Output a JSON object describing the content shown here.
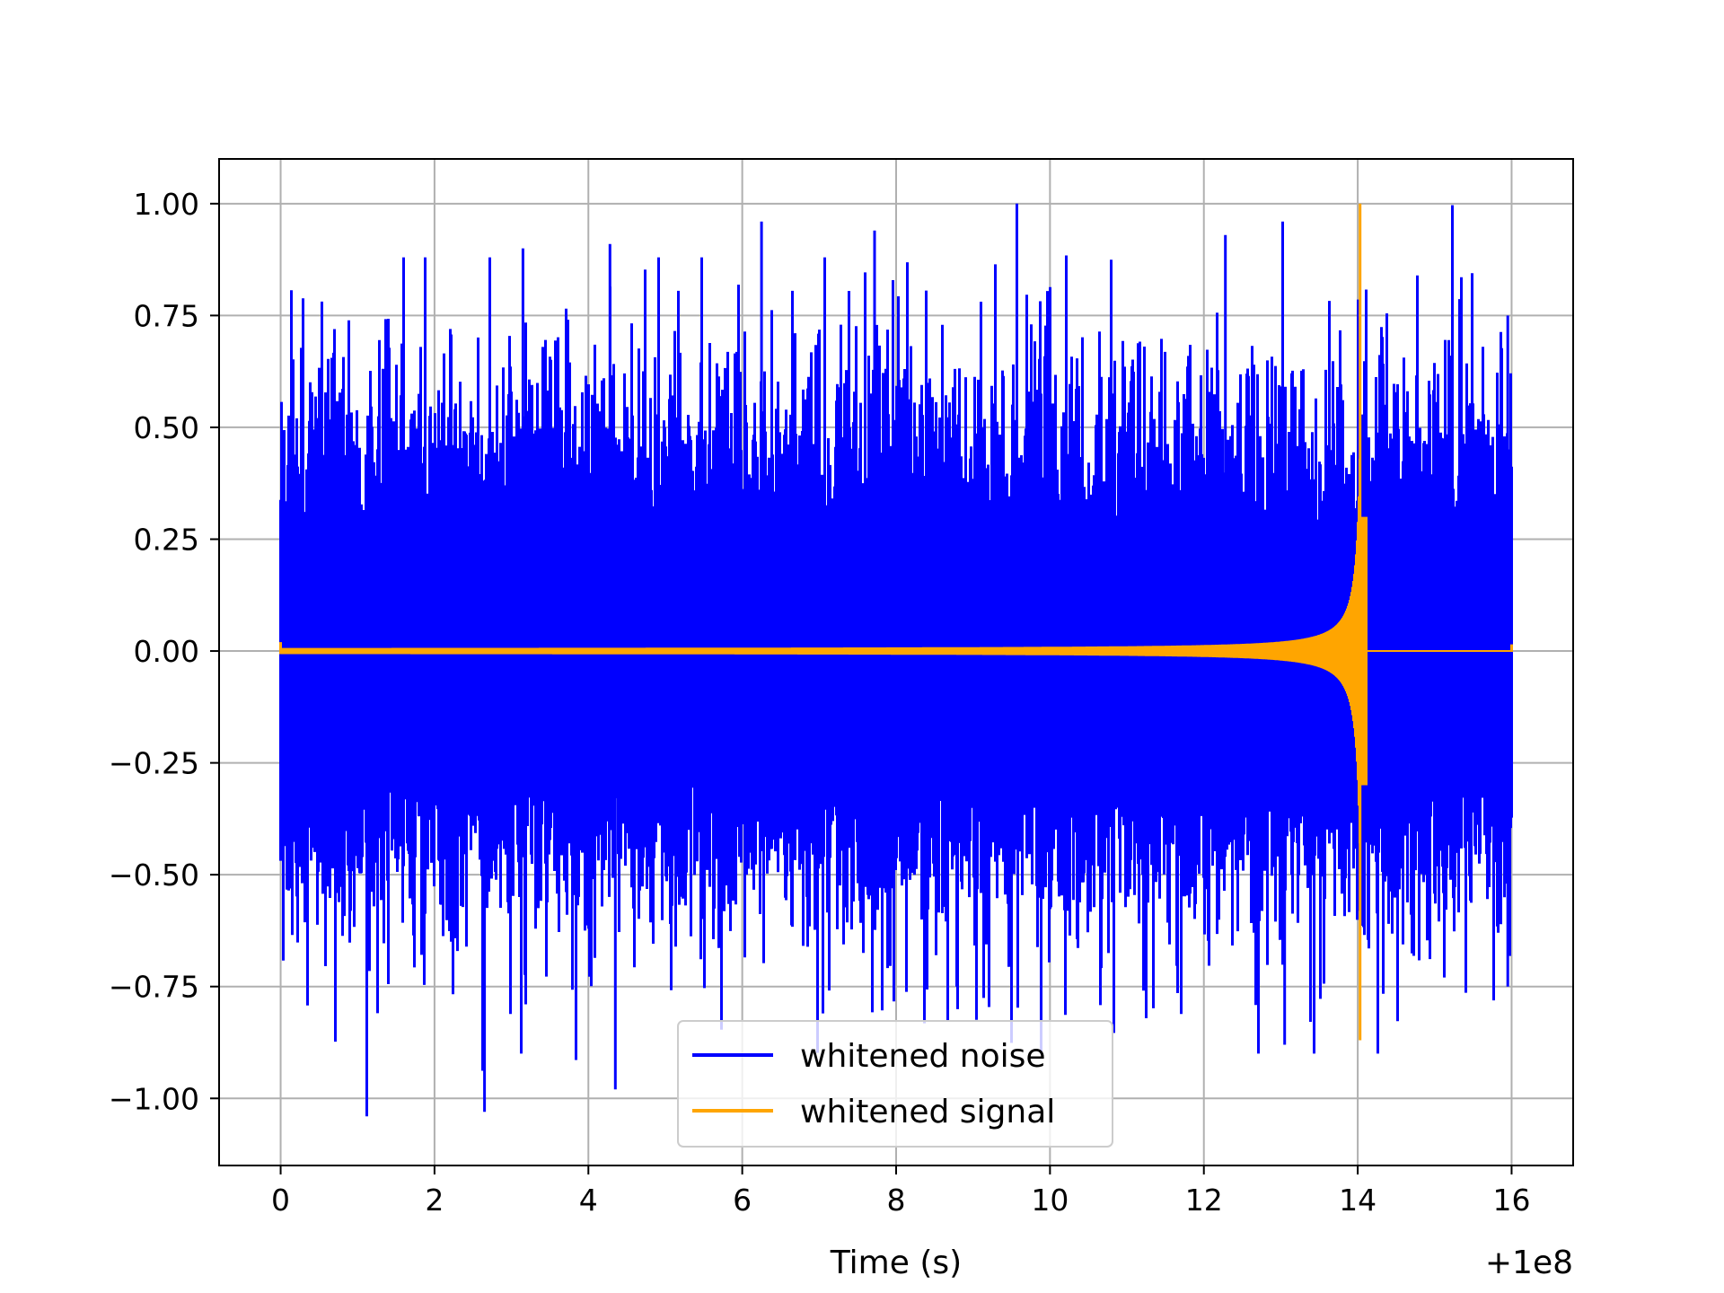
{
  "chart_data": {
    "type": "line",
    "title": "",
    "xlabel": "Time (s)",
    "ylabel": "",
    "x_offset_label": "+1e8",
    "xlim": [
      -0.8,
      16.8
    ],
    "ylim": [
      -1.15,
      1.1
    ],
    "x_ticks": [
      0,
      2,
      4,
      6,
      8,
      10,
      12,
      14,
      16
    ],
    "x_tick_labels": [
      "0",
      "2",
      "4",
      "6",
      "8",
      "10",
      "12",
      "14",
      "16"
    ],
    "y_ticks": [
      1.0,
      0.75,
      0.5,
      0.25,
      0.0,
      -0.25,
      -0.5,
      -0.75,
      -1.0
    ],
    "y_tick_labels": [
      "1.00",
      "0.75",
      "0.50",
      "0.25",
      "0.00",
      "−0.25",
      "−0.50",
      "−0.75",
      "−1.00"
    ],
    "grid": true,
    "legend_position": "lower-center",
    "series": [
      {
        "name": "whitened noise",
        "color": "#0000ff",
        "x_range": [
          0,
          16
        ],
        "typical_envelope": [
          -0.5,
          0.5
        ],
        "peaks": [
          {
            "x": 9.57,
            "y": 1.0
          },
          {
            "x": 6.25,
            "y": 0.96
          },
          {
            "x": 4.28,
            "y": 0.91
          },
          {
            "x": 3.15,
            "y": 0.9
          },
          {
            "x": 7.72,
            "y": 0.94
          },
          {
            "x": 12.28,
            "y": 0.93
          },
          {
            "x": 1.12,
            "y": -1.04
          },
          {
            "x": 2.65,
            "y": -1.03
          },
          {
            "x": 4.35,
            "y": -0.98
          },
          {
            "x": 13.05,
            "y": -0.88
          },
          {
            "x": 15.95,
            "y": 0.75
          },
          {
            "x": 15.95,
            "y": -0.75
          }
        ]
      },
      {
        "name": "whitened signal",
        "color": "#ffa500",
        "x_range": [
          0,
          16
        ],
        "description_points": [
          {
            "x": 0,
            "amp": 0.005
          },
          {
            "x": 8,
            "amp": 0.01
          },
          {
            "x": 12,
            "amp": 0.05
          },
          {
            "x": 13.5,
            "amp": 0.15
          },
          {
            "x": 14.0,
            "amp": 0.55
          },
          {
            "x": 14.03,
            "y_max": 1.0,
            "y_min": -0.87
          },
          {
            "x": 14.1,
            "amp": 0.0
          },
          {
            "x": 16,
            "amp": 0.0
          }
        ]
      }
    ]
  }
}
